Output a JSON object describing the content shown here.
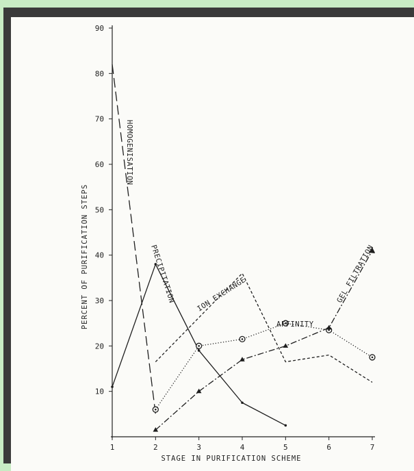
{
  "chart_data": {
    "type": "line",
    "xlabel": "STAGE IN PURIFICATION SCHEME",
    "ylabel": "PERCENT OF PURIFICATION STEPS",
    "xlim": [
      1,
      7
    ],
    "ylim": [
      0,
      90
    ],
    "x_ticks": [
      "1",
      "2",
      "3",
      "4",
      "5",
      "6",
      "7"
    ],
    "y_ticks": [
      "10",
      "20",
      "30",
      "40",
      "50",
      "60",
      "70",
      "80",
      "90"
    ],
    "grid": false,
    "series": [
      {
        "name": "HOMOGENISATION",
        "marker": "none",
        "line_style": "long-dash",
        "points": [
          [
            1,
            82
          ],
          [
            2,
            5
          ]
        ]
      },
      {
        "name": "PRECIPITATION",
        "marker": "dot",
        "line_style": "solid",
        "points": [
          [
            1,
            11
          ],
          [
            2,
            38
          ],
          [
            3,
            19
          ],
          [
            4,
            7.5
          ],
          [
            5,
            2.5
          ]
        ]
      },
      {
        "name": "ION EXCHANGE",
        "marker": "none",
        "line_style": "short-dash",
        "points": [
          [
            2,
            16.5
          ],
          [
            4,
            36
          ],
          [
            5,
            16.5
          ],
          [
            6,
            18
          ],
          [
            7,
            12
          ]
        ]
      },
      {
        "name": "AFFINITY",
        "marker": "circle",
        "line_style": "dotted",
        "points": [
          [
            2,
            6
          ],
          [
            3,
            20
          ],
          [
            4,
            21.5
          ],
          [
            5,
            25
          ],
          [
            6,
            23.5
          ],
          [
            7,
            17.5
          ]
        ]
      },
      {
        "name": "GEL FILTRATION",
        "marker": "triangle",
        "line_style": "dash-dot",
        "points": [
          [
            2,
            1.5
          ],
          [
            3,
            10
          ],
          [
            4,
            17
          ],
          [
            5,
            20
          ],
          [
            6,
            24
          ],
          [
            7,
            41
          ]
        ]
      }
    ]
  }
}
